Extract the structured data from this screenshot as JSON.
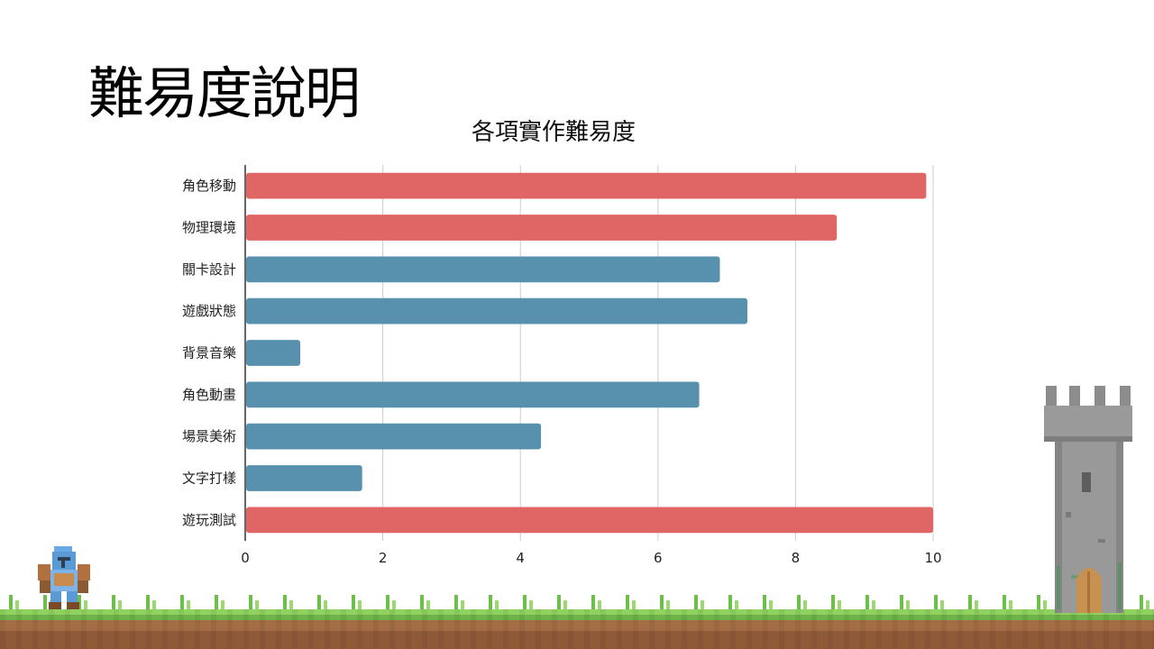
{
  "slide": {
    "title": "難易度說明"
  },
  "chart_data": {
    "type": "bar",
    "orientation": "horizontal",
    "title": "各項實作難易度",
    "categories": [
      "角色移動",
      "物理環境",
      "關卡設計",
      "遊戲狀態",
      "背景音樂",
      "角色動畫",
      "場景美術",
      "文字打樣",
      "遊玩測試"
    ],
    "values": [
      9.9,
      8.6,
      6.9,
      7.3,
      0.8,
      6.6,
      4.3,
      1.7,
      10
    ],
    "colors": [
      "#e06666",
      "#e06666",
      "#5891ae",
      "#5891ae",
      "#5891ae",
      "#5891ae",
      "#5891ae",
      "#5891ae",
      "#e06666"
    ],
    "xlim": [
      0,
      10
    ],
    "xticks": [
      "0",
      "2",
      "4",
      "6",
      "8",
      "10"
    ],
    "grid": true,
    "xlabel": "",
    "ylabel": ""
  },
  "decor": {
    "knight_icon": "pixel-knight-icon",
    "tower_icon": "pixel-tower-icon"
  }
}
